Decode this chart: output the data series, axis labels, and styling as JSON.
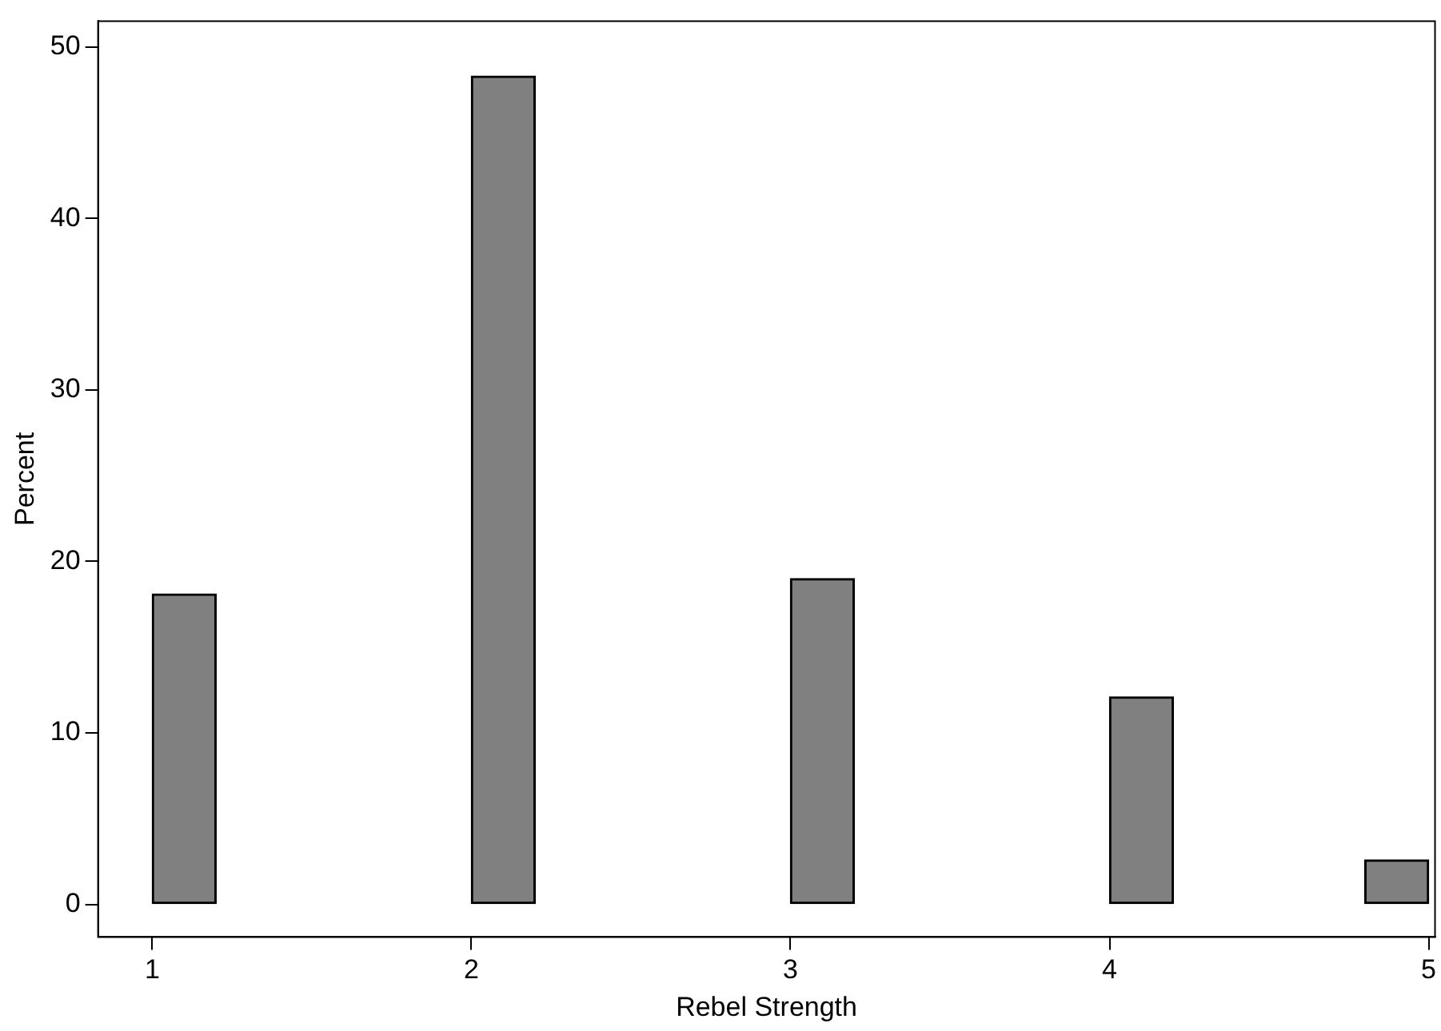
{
  "chart_data": {
    "type": "bar",
    "xlabel": "Rebel Strength",
    "ylabel": "Percent",
    "x": [
      1.1,
      2.1,
      3.1,
      4.1,
      4.9
    ],
    "values": [
      18.1,
      48.3,
      19.0,
      12.1,
      2.6
    ],
    "color": "#808080",
    "xlim": [
      0.83,
      5.02
    ],
    "xticks": [
      1,
      2,
      3,
      4,
      5
    ],
    "ylim": [
      -1.9,
      51.5
    ],
    "yticks": [
      0,
      10,
      20,
      30,
      40,
      50
    ],
    "grid": false,
    "legend": false
  }
}
